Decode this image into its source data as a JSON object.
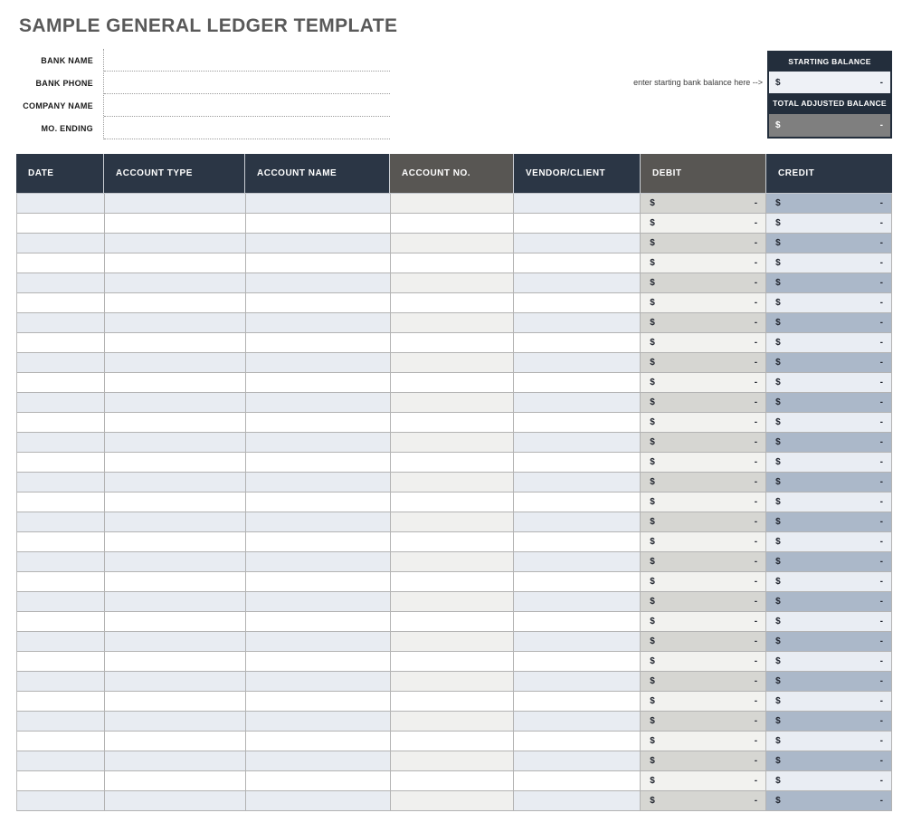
{
  "page": {
    "title": "SAMPLE GENERAL LEDGER TEMPLATE"
  },
  "form": {
    "fields": [
      {
        "key": "bank-name",
        "label": "BANK NAME",
        "value": ""
      },
      {
        "key": "bank-phone",
        "label": "BANK PHONE",
        "value": ""
      },
      {
        "key": "company-name",
        "label": "COMPANY NAME",
        "value": ""
      },
      {
        "key": "mo-ending",
        "label": "MO. ENDING",
        "value": ""
      }
    ]
  },
  "balances": {
    "hint": "enter starting bank balance here -->",
    "starting": {
      "label": "STARTING BALANCE",
      "currency": "$",
      "amount": "-"
    },
    "total": {
      "label": "TOTAL ADJUSTED BALANCE",
      "currency": "$",
      "amount": "-"
    }
  },
  "table": {
    "columns": [
      {
        "key": "date",
        "label": "DATE",
        "tone": "navy",
        "kind": "text"
      },
      {
        "key": "account-type",
        "label": "ACCOUNT TYPE",
        "tone": "navy",
        "kind": "text"
      },
      {
        "key": "account-name",
        "label": "ACCOUNT NAME",
        "tone": "navy",
        "kind": "text"
      },
      {
        "key": "account-no",
        "label": "ACCOUNT NO.",
        "tone": "gray",
        "kind": "text-warm"
      },
      {
        "key": "vendor-client",
        "label": "VENDOR/CLIENT",
        "tone": "navy",
        "kind": "text"
      },
      {
        "key": "debit",
        "label": "DEBIT",
        "tone": "gray",
        "kind": "money-debit"
      },
      {
        "key": "credit",
        "label": "CREDIT",
        "tone": "navy",
        "kind": "money-credit"
      }
    ],
    "row_count": 31,
    "empty_cell_value": "",
    "money_cell": {
      "currency": "$",
      "amount": "-"
    }
  },
  "colors": {
    "header_navy": "#2b3645",
    "header_gray": "#585653",
    "balance_navy": "#232e3c",
    "row_shaded_blue": "#e8ecf2",
    "row_shaded_warm": "#f0f0ee",
    "row_plain": "#ffffff",
    "debit_shaded": "#d6d6d2",
    "debit_plain": "#f2f2ef",
    "credit_shaded": "#abb8c9",
    "credit_plain": "#e9edf3",
    "total_cell_gray": "#7f7f7f",
    "grid_border": "#b3b3b3"
  }
}
